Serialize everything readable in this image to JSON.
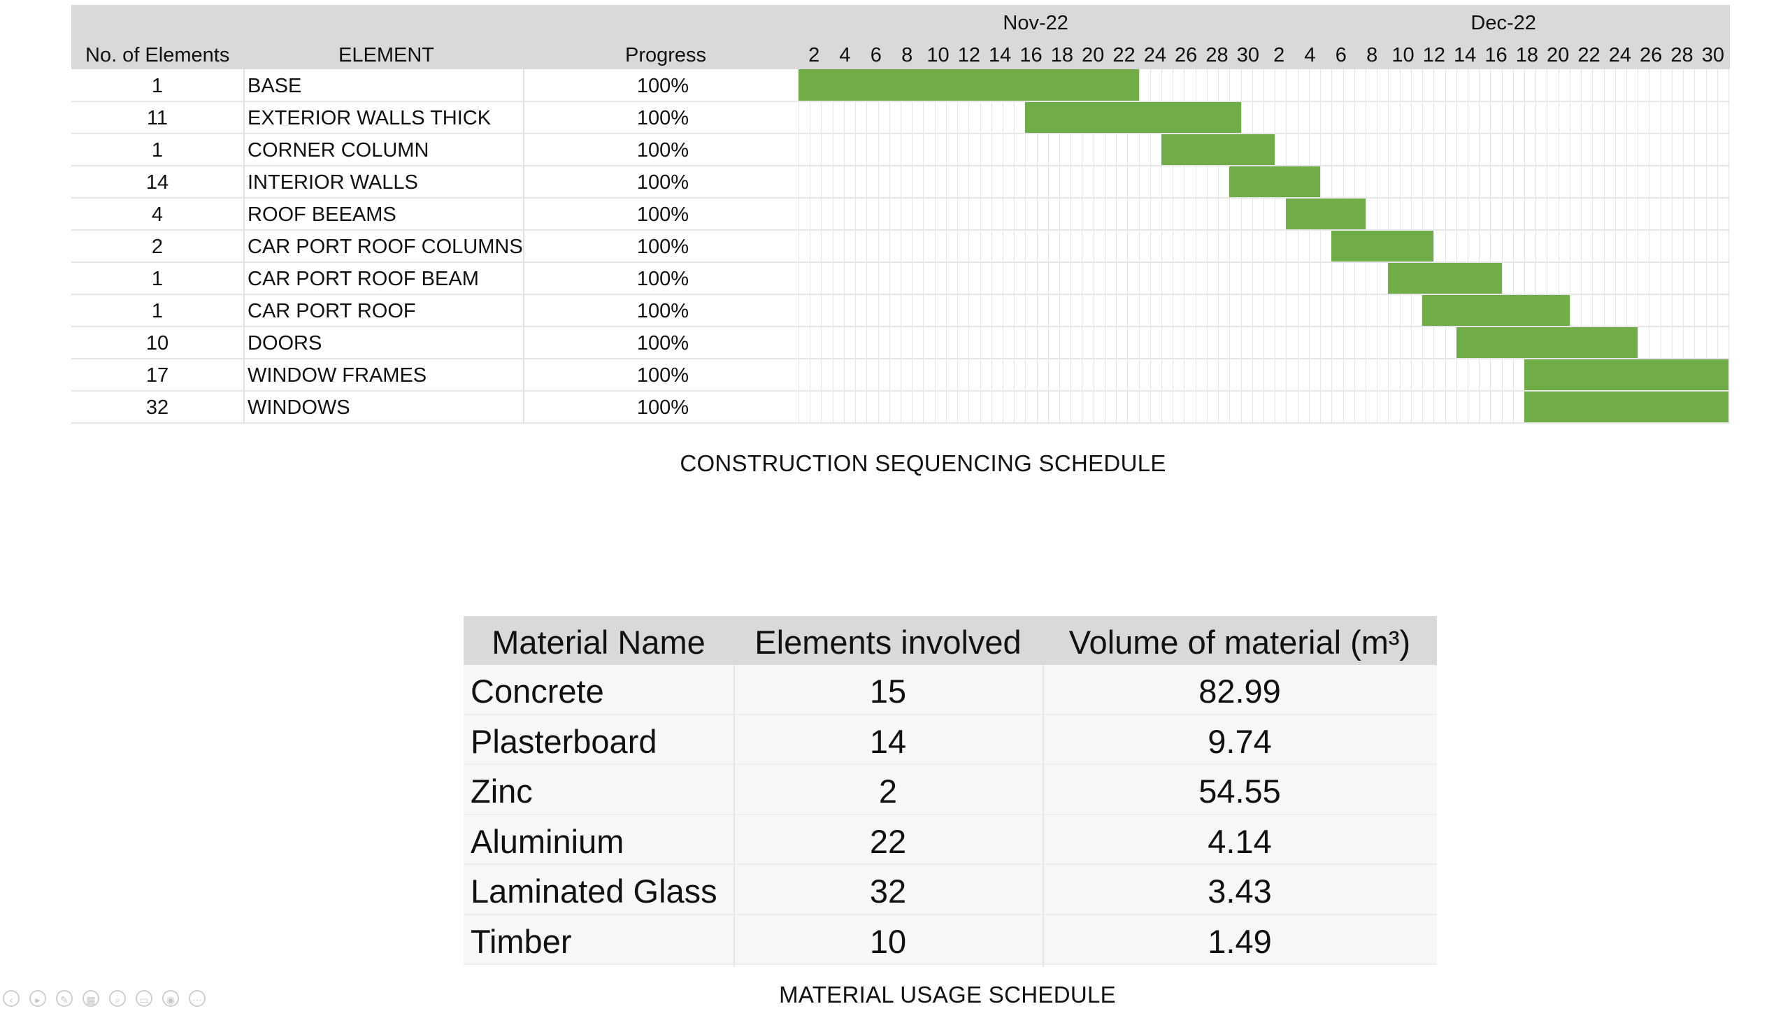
{
  "schedule": {
    "headers": {
      "count": "No. of Elements",
      "element": "ELEMENT",
      "progress": "Progress"
    },
    "months": [
      "Nov-22",
      "Dec-22"
    ],
    "days": [
      "2",
      "4",
      "6",
      "8",
      "10",
      "12",
      "14",
      "16",
      "18",
      "20",
      "22",
      "24",
      "26",
      "28",
      "30",
      "2",
      "4",
      "6",
      "8",
      "10",
      "12",
      "14",
      "16",
      "18",
      "20",
      "22",
      "24",
      "26",
      "28",
      "30"
    ],
    "rows": [
      {
        "count": "1",
        "element": "BASE",
        "progress": "100%",
        "start_day": 1,
        "end_day": 30
      },
      {
        "count": "11",
        "element": "EXTERIOR WALLS THICK",
        "progress": "100%",
        "start_day": 21,
        "end_day": 39
      },
      {
        "count": "1",
        "element": "CORNER COLUMN",
        "progress": "100%",
        "start_day": 33,
        "end_day": 42
      },
      {
        "count": "14",
        "element": "INTERIOR WALLS",
        "progress": "100%",
        "start_day": 39,
        "end_day": 46
      },
      {
        "count": "4",
        "element": "ROOF BEEAMS",
        "progress": "100%",
        "start_day": 44,
        "end_day": 50
      },
      {
        "count": "2",
        "element": "CAR PORT ROOF COLUMNS",
        "progress": "100%",
        "start_day": 48,
        "end_day": 56
      },
      {
        "count": "1",
        "element": "CAR PORT ROOF BEAM",
        "progress": "100%",
        "start_day": 53,
        "end_day": 62
      },
      {
        "count": "1",
        "element": "CAR PORT ROOF",
        "progress": "100%",
        "start_day": 56,
        "end_day": 68
      },
      {
        "count": "10",
        "element": "DOORS",
        "progress": "100%",
        "start_day": 59,
        "end_day": 74
      },
      {
        "count": "17",
        "element": "WINDOW FRAMES",
        "progress": "100%",
        "start_day": 65,
        "end_day": 82
      },
      {
        "count": "32",
        "element": "WINDOWS",
        "progress": "100%",
        "start_day": 65,
        "end_day": 82
      }
    ],
    "total_days": 82,
    "bar_color": "#70ad47",
    "caption": "CONSTRUCTION SEQUENCING SCHEDULE"
  },
  "materials": {
    "headers": {
      "name": "Material Name",
      "elements": "Elements involved",
      "volume": "Volume of material (m³)"
    },
    "rows": [
      {
        "name": "Concrete",
        "elements": "15",
        "volume": "82.99"
      },
      {
        "name": "Plasterboard",
        "elements": "14",
        "volume": "9.74"
      },
      {
        "name": "Zinc",
        "elements": "2",
        "volume": "54.55"
      },
      {
        "name": "Aluminium",
        "elements": "22",
        "volume": "4.14"
      },
      {
        "name": "Laminated Glass",
        "elements": "32",
        "volume": "3.43"
      },
      {
        "name": "Timber",
        "elements": "10",
        "volume": "1.49"
      }
    ],
    "caption": "MATERIAL USAGE SCHEDULE"
  },
  "controls": [
    {
      "icon": "prev-icon",
      "glyph": "‹"
    },
    {
      "icon": "play-icon",
      "glyph": "▸"
    },
    {
      "icon": "pen-icon",
      "glyph": "✎"
    },
    {
      "icon": "slides-icon",
      "glyph": "▦"
    },
    {
      "icon": "zoom-icon",
      "glyph": "⌕"
    },
    {
      "icon": "subtitles-icon",
      "glyph": "▭"
    },
    {
      "icon": "camera-icon",
      "glyph": "◉"
    },
    {
      "icon": "more-icon",
      "glyph": "⋯"
    }
  ]
}
